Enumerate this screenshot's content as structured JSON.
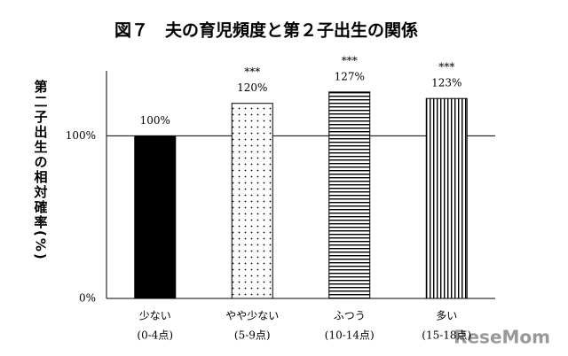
{
  "chart_data": {
    "type": "bar",
    "title": "図７　夫の育児頻度と第２子出生の関係",
    "y_label": "第二子出生の相対確率(%)",
    "categories": [
      "少ない",
      "やや少ない",
      "ふつう",
      "多い"
    ],
    "category_notes": [
      "(0-4点)",
      "(5-9点)",
      "(10-14点)",
      "(15-18点)"
    ],
    "values": [
      100,
      120,
      127,
      123
    ],
    "value_labels": [
      "100%",
      "120%",
      "127%",
      "123%"
    ],
    "significance": [
      null,
      "***",
      "***",
      "***"
    ],
    "patterns": [
      "solid",
      "dots",
      "hlines",
      "vlines"
    ],
    "color": "#000000",
    "ylim": [
      0,
      140
    ],
    "yticks": [
      {
        "value": 0,
        "label": "0%"
      },
      {
        "value": 100,
        "label": "100%"
      }
    ],
    "watermark": "ReseMom"
  }
}
